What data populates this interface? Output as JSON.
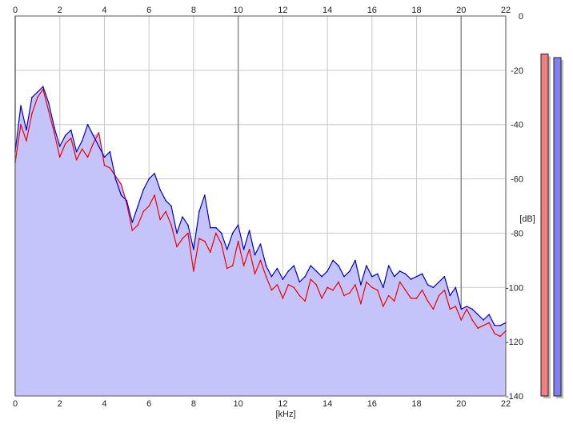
{
  "chart_data": {
    "type": "line",
    "xlabel": "[kHz]",
    "ylabel": "[dB]",
    "xlim": [
      0,
      22
    ],
    "ylim": [
      -140,
      0
    ],
    "x_ticks": [
      0,
      2,
      4,
      6,
      8,
      10,
      12,
      14,
      16,
      18,
      20,
      22
    ],
    "y_ticks": [
      0,
      -20,
      -40,
      -60,
      -80,
      -100,
      -120,
      -140
    ],
    "grid": true,
    "x_major_ticks": [
      0,
      10,
      20
    ],
    "area_fill_color": "#c4c4fa",
    "grid_color": "#c8c8c8",
    "major_grid_color": "#8c8c8c",
    "series": [
      {
        "color": "#ee0000",
        "x": [
          0.0,
          0.25,
          0.5,
          0.75,
          1.0,
          1.25,
          1.5,
          1.75,
          2.0,
          2.25,
          2.5,
          2.75,
          3.0,
          3.25,
          3.5,
          3.75,
          4.0,
          4.25,
          4.5,
          4.75,
          5.0,
          5.25,
          5.5,
          5.75,
          6.0,
          6.25,
          6.5,
          6.75,
          7.0,
          7.25,
          7.5,
          7.75,
          8.0,
          8.25,
          8.5,
          8.75,
          9.0,
          9.25,
          9.5,
          9.75,
          10.0,
          10.25,
          10.5,
          10.75,
          11.0,
          11.25,
          11.5,
          11.75,
          12.0,
          12.25,
          12.5,
          12.75,
          13.0,
          13.25,
          13.5,
          13.75,
          14.0,
          14.25,
          14.5,
          14.75,
          15.0,
          15.25,
          15.5,
          15.75,
          16.0,
          16.25,
          16.5,
          16.75,
          17.0,
          17.25,
          17.5,
          17.75,
          18.0,
          18.25,
          18.5,
          18.75,
          19.0,
          19.25,
          19.5,
          19.75,
          20.0,
          20.25,
          20.5,
          20.75,
          21.0,
          21.25,
          21.5,
          21.75,
          22.0
        ],
        "values": [
          -54,
          -40,
          -46,
          -36,
          -30,
          -27,
          -35,
          -43,
          -52,
          -47,
          -45,
          -53,
          -49,
          -52,
          -47,
          -43,
          -55,
          -56,
          -59,
          -62,
          -69,
          -79,
          -77,
          -72,
          -70,
          -66,
          -75,
          -72,
          -77,
          -85,
          -82,
          -80,
          -94,
          -82,
          -83,
          -87,
          -80,
          -84,
          -93,
          -92,
          -83,
          -92,
          -86,
          -95,
          -90,
          -96,
          -101,
          -99,
          -104,
          -99,
          -100,
          -103,
          -105,
          -97,
          -99,
          -104,
          -100,
          -101,
          -98,
          -103,
          -102,
          -99,
          -106,
          -98,
          -100,
          -101,
          -107,
          -103,
          -105,
          -98,
          -101,
          -104,
          -104,
          -101,
          -105,
          -108,
          -103,
          -101,
          -108,
          -107,
          -112,
          -108,
          -112,
          -115,
          -114,
          -113,
          -117,
          -118,
          -116
        ]
      },
      {
        "color": "#0000cc",
        "x": [
          0.0,
          0.25,
          0.5,
          0.75,
          1.0,
          1.25,
          1.5,
          1.75,
          2.0,
          2.25,
          2.5,
          2.75,
          3.0,
          3.25,
          3.5,
          3.75,
          4.0,
          4.25,
          4.5,
          4.75,
          5.0,
          5.25,
          5.5,
          5.75,
          6.0,
          6.25,
          6.5,
          6.75,
          7.0,
          7.25,
          7.5,
          7.75,
          8.0,
          8.25,
          8.5,
          8.75,
          9.0,
          9.25,
          9.5,
          9.75,
          10.0,
          10.25,
          10.5,
          10.75,
          11.0,
          11.25,
          11.5,
          11.75,
          12.0,
          12.25,
          12.5,
          12.75,
          13.0,
          13.25,
          13.5,
          13.75,
          14.0,
          14.25,
          14.5,
          14.75,
          15.0,
          15.25,
          15.5,
          15.75,
          16.0,
          16.25,
          16.5,
          16.75,
          17.0,
          17.25,
          17.5,
          17.75,
          18.0,
          18.25,
          18.5,
          18.75,
          19.0,
          19.25,
          19.5,
          19.75,
          20.0,
          20.25,
          20.5,
          20.75,
          21.0,
          21.25,
          21.5,
          21.75,
          22.0
        ],
        "values": [
          -50,
          -33,
          -42,
          -30,
          -28,
          -26,
          -32,
          -41,
          -48,
          -44,
          -42,
          -50,
          -46,
          -40,
          -44,
          -48,
          -52,
          -50,
          -60,
          -66,
          -68,
          -76,
          -70,
          -64,
          -60,
          -58,
          -64,
          -68,
          -70,
          -80,
          -74,
          -77,
          -86,
          -72,
          -66,
          -78,
          -78,
          -80,
          -86,
          -80,
          -77,
          -86,
          -79,
          -88,
          -84,
          -92,
          -96,
          -93,
          -97,
          -94,
          -92,
          -98,
          -96,
          -92,
          -94,
          -96,
          -94,
          -90,
          -92,
          -96,
          -94,
          -90,
          -99,
          -92,
          -96,
          -95,
          -100,
          -92,
          -96,
          -94,
          -95,
          -97,
          -96,
          -95,
          -99,
          -100,
          -98,
          -96,
          -103,
          -100,
          -108,
          -107,
          -108,
          -110,
          -112,
          -110,
          -114,
          -114,
          -113
        ]
      }
    ]
  },
  "level_meters": [
    {
      "color": "#f08080",
      "level": 0.95
    },
    {
      "color": "#8080f0",
      "level": 0.94
    }
  ]
}
